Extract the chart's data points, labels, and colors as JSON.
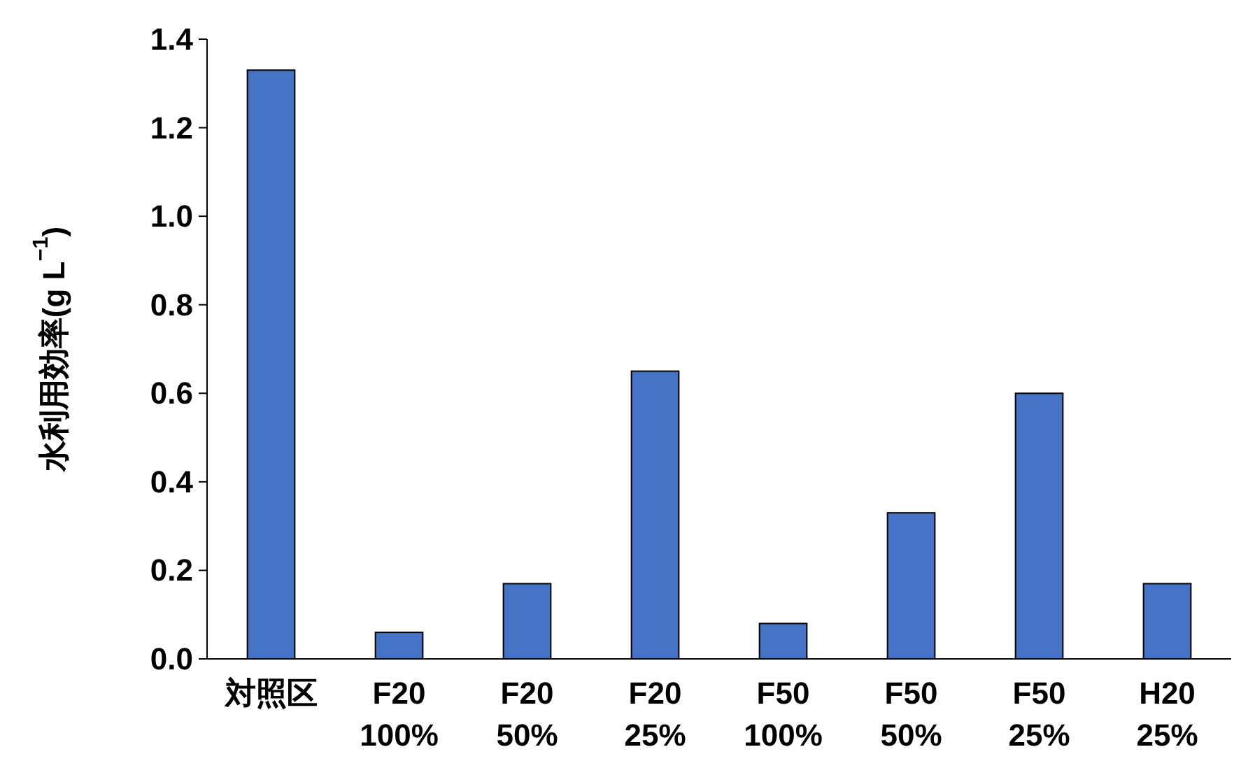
{
  "chart_data": {
    "type": "bar",
    "ylabel": "水利用効率(g L$^{−1}$)",
    "categories": [
      "対照区",
      "F20\n100%",
      "F20\n50%",
      "F20\n25%",
      "F50\n100%",
      "F50\n50%",
      "F50\n25%",
      "H20\n25%"
    ],
    "values": [
      1.33,
      0.06,
      0.17,
      0.65,
      0.08,
      0.33,
      0.6,
      0.17
    ],
    "color": "#4472c4",
    "ylim": [
      0,
      1.4
    ],
    "yticks": [
      {
        "value": 0,
        "label": "0.0"
      },
      {
        "value": 0.2,
        "label": "0.2"
      },
      {
        "value": 0.4,
        "label": "0.4"
      },
      {
        "value": 0.6,
        "label": "0.6"
      },
      {
        "value": 0.8,
        "label": "0.8"
      },
      {
        "value": 1.0,
        "label": "1.0"
      },
      {
        "value": 1.2,
        "label": "1.2"
      },
      {
        "value": 1.4,
        "label": "1.4"
      }
    ],
    "grid": false
  }
}
